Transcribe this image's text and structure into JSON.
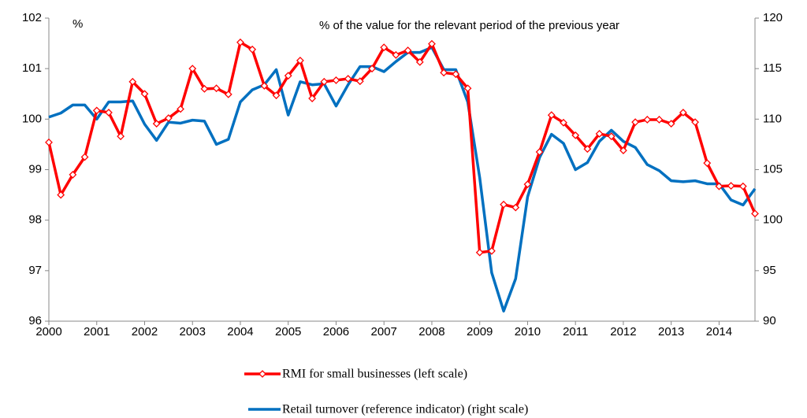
{
  "chart_data": {
    "type": "line",
    "y_label": "%",
    "annotation": "% of the value for the relevant period of the previous year",
    "categories": [
      "2000",
      null,
      null,
      null,
      "2001",
      null,
      null,
      null,
      "2002",
      null,
      null,
      null,
      "2003",
      null,
      null,
      null,
      "2004",
      null,
      null,
      null,
      "2005",
      null,
      null,
      null,
      "2006",
      null,
      null,
      null,
      "2007",
      null,
      null,
      null,
      "2008",
      null,
      null,
      null,
      "2009",
      null,
      null,
      null,
      "2010",
      null,
      null,
      null,
      "2011",
      null,
      null,
      null,
      "2012",
      null,
      null,
      null,
      "2013",
      null,
      null,
      null,
      "2014",
      null,
      null,
      null
    ],
    "series": [
      {
        "name": "RMI for small businesses (left scale)",
        "color": "#ff0000",
        "marker": "diamond",
        "values": [
          99.54,
          98.5,
          98.9,
          99.25,
          100.17,
          100.13,
          99.66,
          100.74,
          100.5,
          99.91,
          100.02,
          100.2,
          101.0,
          100.6,
          100.61,
          100.49,
          101.52,
          101.38,
          100.66,
          100.47,
          100.86,
          101.16,
          100.41,
          100.74,
          100.77,
          100.8,
          100.75,
          101.0,
          101.42,
          101.27,
          101.36,
          101.13,
          101.49,
          100.92,
          100.89,
          100.61,
          97.36,
          97.39,
          98.31,
          98.25,
          98.71,
          99.35,
          100.08,
          99.93,
          99.68,
          99.41,
          99.71,
          99.66,
          99.38,
          99.94,
          99.99,
          99.99,
          99.91,
          100.13,
          99.94,
          99.13,
          98.67,
          98.68,
          98.67,
          98.13
        ]
      },
      {
        "name": "Retail turnover (reference indicator) (right scale)",
        "color": "#0070c0",
        "axis": "y2",
        "values": [
          110.2,
          110.6,
          111.4,
          111.4,
          110.0,
          111.7,
          111.7,
          111.8,
          109.5,
          107.9,
          109.7,
          109.6,
          109.9,
          109.8,
          107.5,
          108.0,
          111.7,
          112.9,
          113.4,
          114.9,
          110.4,
          113.7,
          113.4,
          113.5,
          111.3,
          113.4,
          115.2,
          115.2,
          114.7,
          115.7,
          116.6,
          116.6,
          117.1,
          114.9,
          114.9,
          111.7,
          104.2,
          94.8,
          91.0,
          94.2,
          102.3,
          106.2,
          108.5,
          107.6,
          105.0,
          105.7,
          107.8,
          108.9,
          107.8,
          107.2,
          105.5,
          104.9,
          103.9,
          103.8,
          103.9,
          103.6,
          103.6,
          102.0,
          101.5,
          103.1
        ]
      }
    ],
    "ylim": [
      96,
      102
    ],
    "yticks": [
      96,
      97,
      98,
      99,
      100,
      101,
      102
    ],
    "y2lim": [
      90,
      120
    ],
    "y2ticks": [
      90,
      95,
      100,
      105,
      110,
      115,
      120
    ],
    "grid": false
  }
}
